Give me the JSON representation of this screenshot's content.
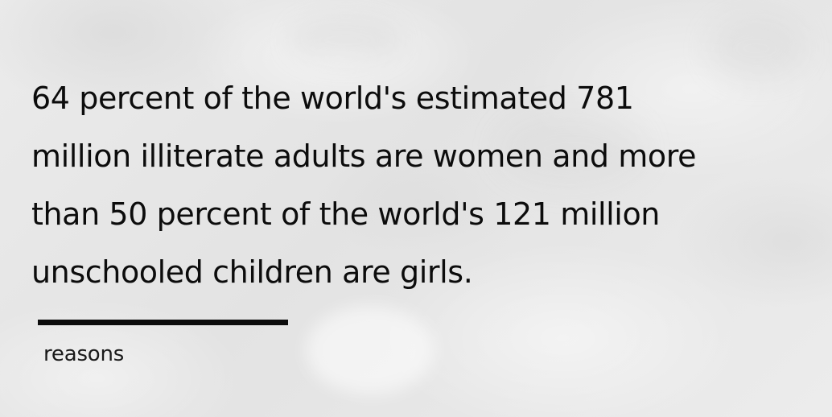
{
  "quote": {
    "lines": [
      "64 percent of the world's estimated 781",
      "million illiterate adults are women and more",
      "than 50 percent of the world's 121 million",
      "unschooled children are girls."
    ]
  },
  "footer": {
    "label": "reasons"
  },
  "colors": {
    "text": "#0c0c0c",
    "background": "#e6e6e6",
    "divider": "#0c0c0c"
  }
}
